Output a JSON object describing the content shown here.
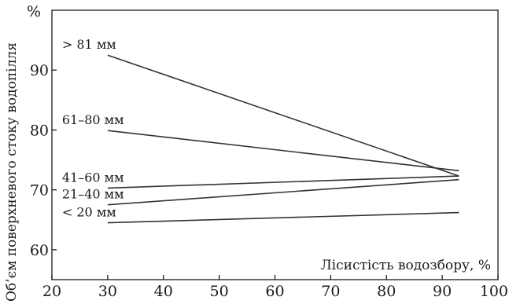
{
  "chart_data": {
    "type": "line",
    "xlabel": "Лісистість водозбору, %",
    "ylabel": "Об’єм поверхневого стоку водопілля",
    "y_unit": "%",
    "xlim": [
      20,
      100
    ],
    "ylim": [
      55,
      100
    ],
    "x_ticks": [
      "20",
      "30",
      "40",
      "50",
      "60",
      "70",
      "80",
      "90",
      "100"
    ],
    "y_ticks": [
      "60",
      "70",
      "80",
      "90"
    ],
    "grid": false,
    "series": [
      {
        "name": "> 81 мм",
        "x": [
          30,
          93
        ],
        "y": [
          92.5,
          72.3
        ]
      },
      {
        "name": "61–80 мм",
        "x": [
          30,
          93
        ],
        "y": [
          79.9,
          73.2
        ]
      },
      {
        "name": "41–60 мм",
        "x": [
          30,
          93
        ],
        "y": [
          70.3,
          72.3
        ]
      },
      {
        "name": "21–40 мм",
        "x": [
          30,
          93
        ],
        "y": [
          67.5,
          71.7
        ]
      },
      {
        "name": "< 20 мм",
        "x": [
          30,
          93
        ],
        "y": [
          64.5,
          66.2
        ]
      }
    ],
    "colors": {
      "line": "#333333",
      "axis": "#1a1a1a"
    }
  }
}
